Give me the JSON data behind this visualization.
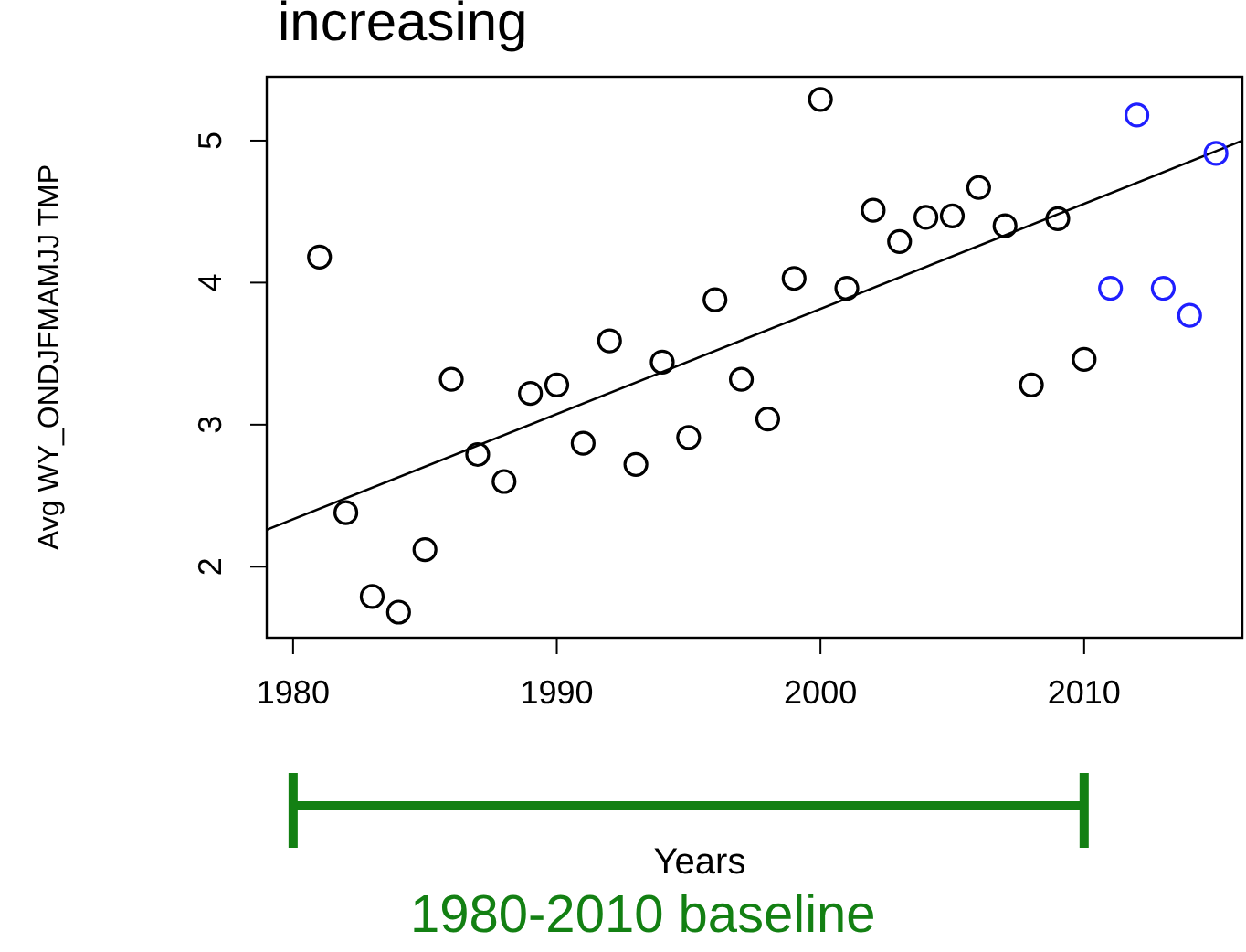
{
  "chart_data": {
    "type": "scatter",
    "title": "increasing",
    "xlabel": "Years",
    "ylabel": "Avg WY_ONDJFMAMJJ TMP",
    "xlim": [
      1979,
      2016
    ],
    "xticks": [
      1980,
      1990,
      2000,
      2010
    ],
    "ylim": [
      1.5,
      5.45
    ],
    "yticks": [
      2,
      3,
      4,
      5
    ],
    "marker": "circle",
    "series": [
      {
        "color": "#000000",
        "x": [
          1981,
          1982,
          1983,
          1984,
          1985,
          1986,
          1987,
          1988,
          1989,
          1990,
          1991,
          1992,
          1993,
          1994,
          1995,
          1996,
          1997,
          1998,
          1999,
          2000,
          2001,
          2002,
          2003,
          2004,
          2005,
          2006,
          2007,
          2008,
          2009,
          2010
        ],
        "values": [
          4.18,
          2.38,
          1.79,
          1.68,
          2.12,
          3.32,
          2.79,
          2.6,
          3.22,
          3.28,
          2.87,
          3.59,
          2.72,
          3.44,
          2.91,
          3.88,
          3.32,
          3.04,
          4.03,
          5.29,
          3.96,
          4.51,
          4.29,
          4.46,
          4.47,
          4.67,
          4.4,
          3.28,
          4.45,
          3.46
        ]
      },
      {
        "color": "#1f1fff",
        "x": [
          2011,
          2012,
          2013,
          2014,
          2015
        ],
        "values": [
          3.96,
          5.18,
          3.96,
          3.77,
          4.91
        ]
      },
      {
        "type": "line",
        "marker": "none",
        "color": "#000000",
        "x": [
          1979,
          2016
        ],
        "values": [
          2.26,
          5.0
        ]
      }
    ],
    "annotations": [
      "1980-2010 baseline"
    ]
  }
}
